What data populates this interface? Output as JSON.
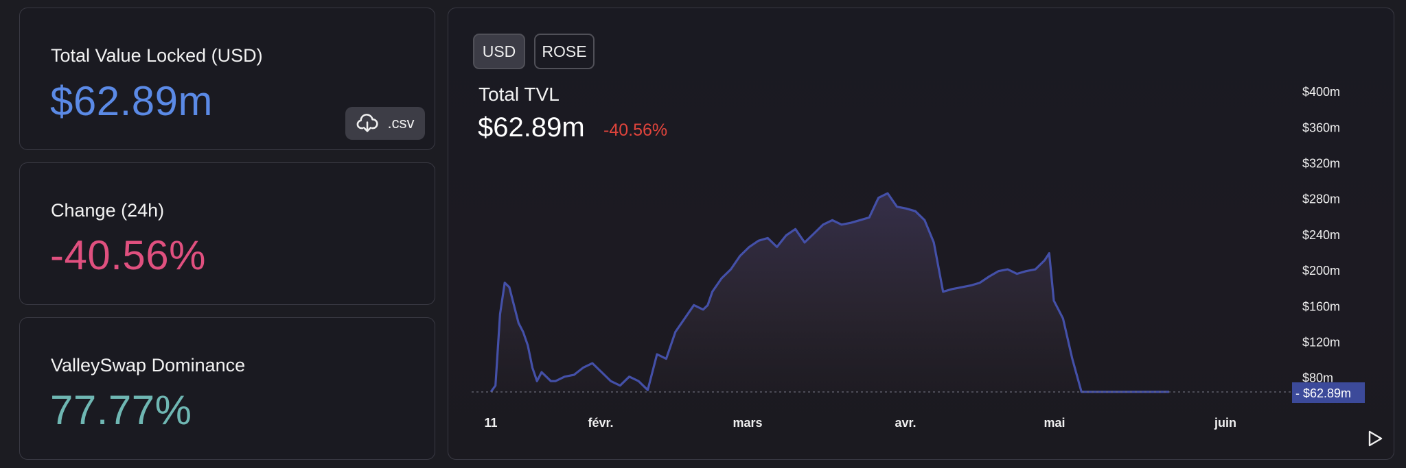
{
  "cards": {
    "tvl": {
      "label": "Total Value Locked (USD)",
      "value": "$62.89m",
      "color": "#5b8ae6"
    },
    "change": {
      "label": "Change (24h)",
      "value": "-40.56%",
      "color": "#e0507f"
    },
    "dominance": {
      "label": "ValleySwap Dominance",
      "value": "77.77%",
      "color": "#6fb7b3"
    },
    "csv_label": ".csv",
    "csv_icon": "cloud-download-icon"
  },
  "chart": {
    "toggles": [
      {
        "label": "USD",
        "active": true
      },
      {
        "label": "ROSE",
        "active": false
      }
    ],
    "title": "Total TVL",
    "value": "$62.89m",
    "change": "-40.56%",
    "change_color": "#e0443c",
    "line_color": "#4450a8",
    "play_icon": "play-icon"
  },
  "chart_data": {
    "type": "area",
    "title": "Total TVL",
    "y_ticks": [
      "$80m",
      "$120m",
      "$160m",
      "$200m",
      "$240m",
      "$280m",
      "$320m",
      "$360m",
      "$400m"
    ],
    "x_ticks": [
      "11",
      "févr.",
      "mars",
      "avr.",
      "mai",
      "juin"
    ],
    "x_tick_days": [
      0,
      21,
      49,
      80,
      110,
      141
    ],
    "ylim": [
      62.89,
      400
    ],
    "current_label": "$62.89m",
    "x": [
      0,
      1,
      2,
      3,
      4,
      5,
      6,
      7,
      8,
      9,
      10,
      11,
      12,
      13,
      14,
      16,
      18,
      20,
      22,
      24,
      26,
      28,
      30,
      32,
      34,
      36,
      38,
      40,
      42,
      44,
      46,
      47,
      48,
      50,
      52,
      54,
      56,
      58,
      60,
      62,
      64,
      66,
      68,
      70,
      72,
      74,
      76,
      78,
      80,
      82,
      84,
      86,
      88,
      90,
      92,
      94,
      96,
      98,
      100,
      102,
      104,
      106,
      108,
      110,
      112,
      114,
      116,
      118,
      120,
      121,
      122,
      124,
      126,
      128,
      130,
      132,
      134,
      136,
      138,
      140,
      142,
      143,
      144,
      145,
      146,
      147
    ],
    "y": [
      63,
      70,
      150,
      185,
      180,
      160,
      140,
      130,
      115,
      90,
      75,
      85,
      80,
      75,
      75,
      80,
      82,
      90,
      95,
      85,
      75,
      70,
      80,
      75,
      65,
      105,
      100,
      130,
      145,
      160,
      155,
      160,
      175,
      190,
      200,
      215,
      225,
      232,
      235,
      225,
      238,
      245,
      230,
      240,
      250,
      255,
      250,
      252,
      255,
      258,
      280,
      285,
      270,
      268,
      265,
      255,
      230,
      175,
      178,
      180,
      182,
      185,
      192,
      198,
      200,
      195,
      198,
      200,
      210,
      218,
      165,
      145,
      100,
      63,
      63,
      63,
      63,
      63,
      63,
      63,
      63,
      63,
      63,
      63,
      63,
      63
    ]
  }
}
